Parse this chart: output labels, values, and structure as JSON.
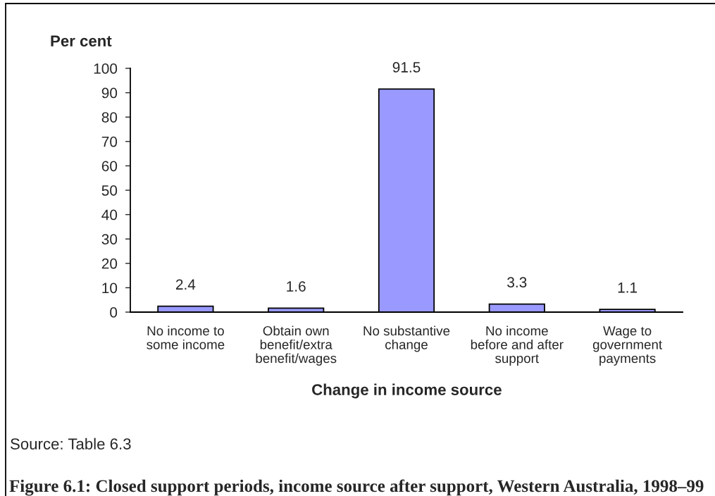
{
  "chart_data": {
    "type": "bar",
    "title": "Figure 6.1: Closed support periods, income source after support, Western Australia, 1998–99",
    "xlabel": "Change in income source",
    "ylabel": "Per cent",
    "annotations": [
      "Source: Table 6.3"
    ],
    "categories": [
      "No income to\nsome income",
      "Obtain own\nbenefit/extra\nbenefit/wages",
      "No substantive\nchange",
      "No income\nbefore and after\nsupport",
      "Wage to\ngovernment\npayments"
    ],
    "values": [
      2.4,
      1.6,
      91.5,
      3.3,
      1.1
    ],
    "color": "#9999ff",
    "ylim": [
      0,
      100
    ],
    "yticks": [
      0,
      10,
      20,
      30,
      40,
      50,
      60,
      70,
      80,
      90,
      100
    ],
    "data_labels": true,
    "grid": false,
    "legend": false
  }
}
